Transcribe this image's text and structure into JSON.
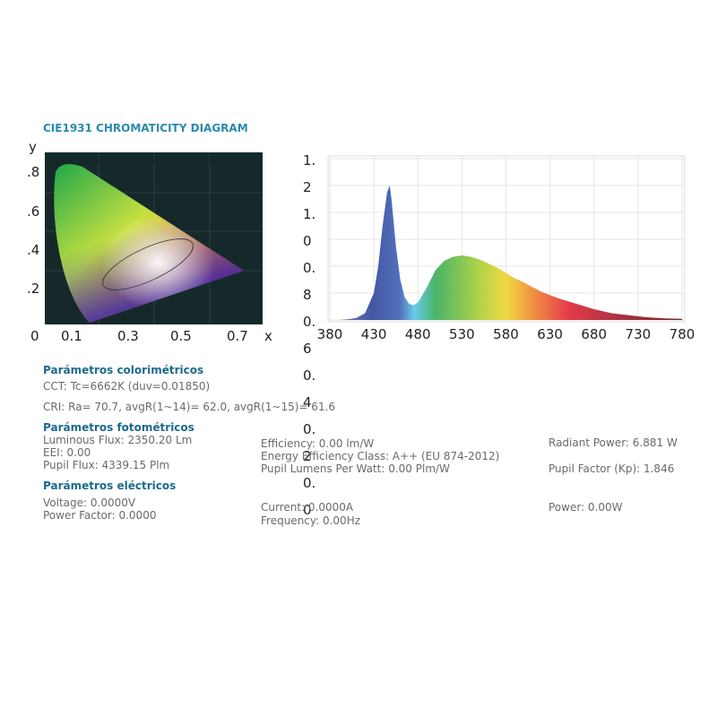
{
  "cie": {
    "title": "CIE1931 CHROMATICITY DIAGRAM",
    "y_label": "y",
    "x_label": "x",
    "yticks": [
      ".8",
      ".6",
      ".4",
      ".2"
    ],
    "xticks": [
      "0",
      "0.1",
      "0.3",
      "0.5",
      "0.7"
    ]
  },
  "colorimetric": {
    "heading": "Parámetros colorimétricos",
    "cct": "CCT: Tc=6662K (duv=0.01850)",
    "cri": "CRI: Ra= 70.7, avgR(1~14)= 62.0, avgR(1~15)= 61.6"
  },
  "photometric": {
    "heading": "Parámetros fotométricos",
    "luminous_flux": "Luminous Flux: 2350.20 Lm",
    "eei": "EEI: 0.00",
    "pupil_flux": "Pupil Flux: 4339.15 Plm",
    "efficiency": "Efficiency: 0.00 lm/W",
    "energy_class": "Energy Efficiency Class: A++ (EU 874-2012)",
    "pupil_lpw": "Pupil Lumens Per Watt: 0.00 Plm/W",
    "radiant_power": "Radiant Power: 6.881 W",
    "pupil_factor": "Pupil Factor (Kp): 1.846"
  },
  "electrical": {
    "heading": "Parámetros eléctricos",
    "voltage": "Voltage: 0.0000V",
    "power_factor": "Power Factor: 0.0000",
    "current": "Current: 0.0000A",
    "frequency": "Frequency: 0.00Hz",
    "power": "Power: 0.00W"
  },
  "chart_data": {
    "type": "area",
    "x": [
      380,
      390,
      400,
      410,
      420,
      430,
      435,
      440,
      445,
      448,
      450,
      455,
      460,
      465,
      470,
      475,
      480,
      490,
      500,
      510,
      520,
      530,
      540,
      550,
      560,
      570,
      580,
      590,
      600,
      620,
      640,
      660,
      680,
      700,
      720,
      740,
      760,
      780
    ],
    "values": [
      0,
      0,
      0.005,
      0.015,
      0.05,
      0.2,
      0.4,
      0.7,
      0.95,
      1.0,
      0.9,
      0.55,
      0.3,
      0.17,
      0.12,
      0.11,
      0.13,
      0.24,
      0.37,
      0.44,
      0.47,
      0.48,
      0.47,
      0.45,
      0.42,
      0.39,
      0.35,
      0.31,
      0.28,
      0.21,
      0.16,
      0.12,
      0.08,
      0.05,
      0.035,
      0.02,
      0.012,
      0.008
    ],
    "xlim": [
      380,
      780
    ],
    "xticks": [
      380,
      430,
      480,
      530,
      580,
      630,
      680,
      730,
      780
    ],
    "ylim": [
      0,
      1.2
    ],
    "yticks": [
      1.2,
      {
        "value": 1,
        "label": "1.0"
      },
      0.8,
      0.6,
      0.4,
      0.2,
      {
        "value": 0,
        "label": "0.0"
      }
    ],
    "grid": true
  }
}
